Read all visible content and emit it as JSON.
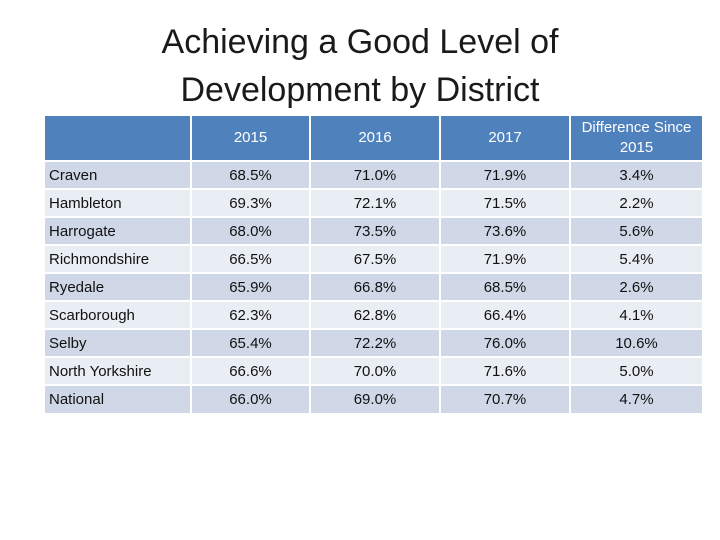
{
  "title": {
    "line1": "Achieving a Good Level of",
    "line2": "Development by District"
  },
  "table": {
    "headers": [
      "",
      "2015",
      "2016",
      "2017",
      "Difference Since 2015"
    ],
    "rows": [
      {
        "name": "Craven",
        "v2015": "68.5%",
        "v2016": "71.0%",
        "v2017": "71.9%",
        "diff": "3.4%"
      },
      {
        "name": "Hambleton",
        "v2015": "69.3%",
        "v2016": "72.1%",
        "v2017": "71.5%",
        "diff": "2.2%"
      },
      {
        "name": "Harrogate",
        "v2015": "68.0%",
        "v2016": "73.5%",
        "v2017": "73.6%",
        "diff": "5.6%"
      },
      {
        "name": "Richmondshire",
        "v2015": "66.5%",
        "v2016": "67.5%",
        "v2017": "71.9%",
        "diff": "5.4%"
      },
      {
        "name": "Ryedale",
        "v2015": "65.9%",
        "v2016": "66.8%",
        "v2017": "68.5%",
        "diff": "2.6%"
      },
      {
        "name": "Scarborough",
        "v2015": "62.3%",
        "v2016": "62.8%",
        "v2017": "66.4%",
        "diff": "4.1%"
      },
      {
        "name": "Selby",
        "v2015": "65.4%",
        "v2016": "72.2%",
        "v2017": "76.0%",
        "diff": "10.6%"
      },
      {
        "name": "North Yorkshire",
        "v2015": "66.6%",
        "v2016": "70.0%",
        "v2017": "71.6%",
        "diff": "5.0%"
      },
      {
        "name": "National",
        "v2015": "66.0%",
        "v2016": "69.0%",
        "v2017": "70.7%",
        "diff": "4.7%"
      }
    ]
  },
  "colors": {
    "header_bg": "#4f81bd",
    "row_odd_bg": "#d0d8e8",
    "row_even_bg": "#e9edf4"
  }
}
